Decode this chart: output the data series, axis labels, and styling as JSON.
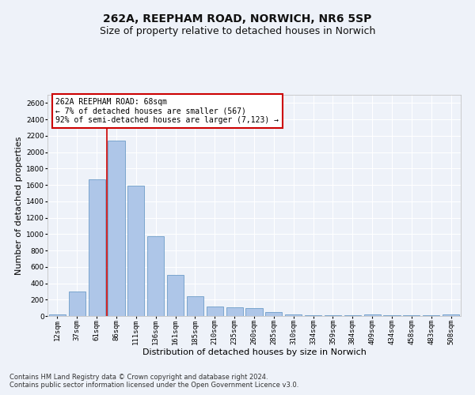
{
  "title": "262A, REEPHAM ROAD, NORWICH, NR6 5SP",
  "subtitle": "Size of property relative to detached houses in Norwich",
  "xlabel": "Distribution of detached houses by size in Norwich",
  "ylabel": "Number of detached properties",
  "categories": [
    "12sqm",
    "37sqm",
    "61sqm",
    "86sqm",
    "111sqm",
    "136sqm",
    "161sqm",
    "185sqm",
    "210sqm",
    "235sqm",
    "260sqm",
    "285sqm",
    "310sqm",
    "334sqm",
    "359sqm",
    "384sqm",
    "409sqm",
    "434sqm",
    "458sqm",
    "483sqm",
    "508sqm"
  ],
  "values": [
    20,
    300,
    1670,
    2140,
    1590,
    970,
    505,
    245,
    120,
    110,
    95,
    45,
    20,
    10,
    10,
    5,
    20,
    5,
    5,
    5,
    20
  ],
  "bar_color": "#aec6e8",
  "bar_edge_color": "#5a8fc0",
  "vline_x": 2.5,
  "annotation_title": "262A REEPHAM ROAD: 68sqm",
  "annotation_line1": "← 7% of detached houses are smaller (567)",
  "annotation_line2": "92% of semi-detached houses are larger (7,123) →",
  "vline_color": "#cc0000",
  "annotation_box_color": "#cc0000",
  "ylim": [
    0,
    2700
  ],
  "footnote1": "Contains HM Land Registry data © Crown copyright and database right 2024.",
  "footnote2": "Contains public sector information licensed under the Open Government Licence v3.0.",
  "background_color": "#eef2f9",
  "grid_color": "#ffffff",
  "title_fontsize": 10,
  "subtitle_fontsize": 9,
  "xlabel_fontsize": 8,
  "ylabel_fontsize": 8,
  "tick_fontsize": 6.5,
  "annotation_fontsize": 7,
  "footnote_fontsize": 6
}
